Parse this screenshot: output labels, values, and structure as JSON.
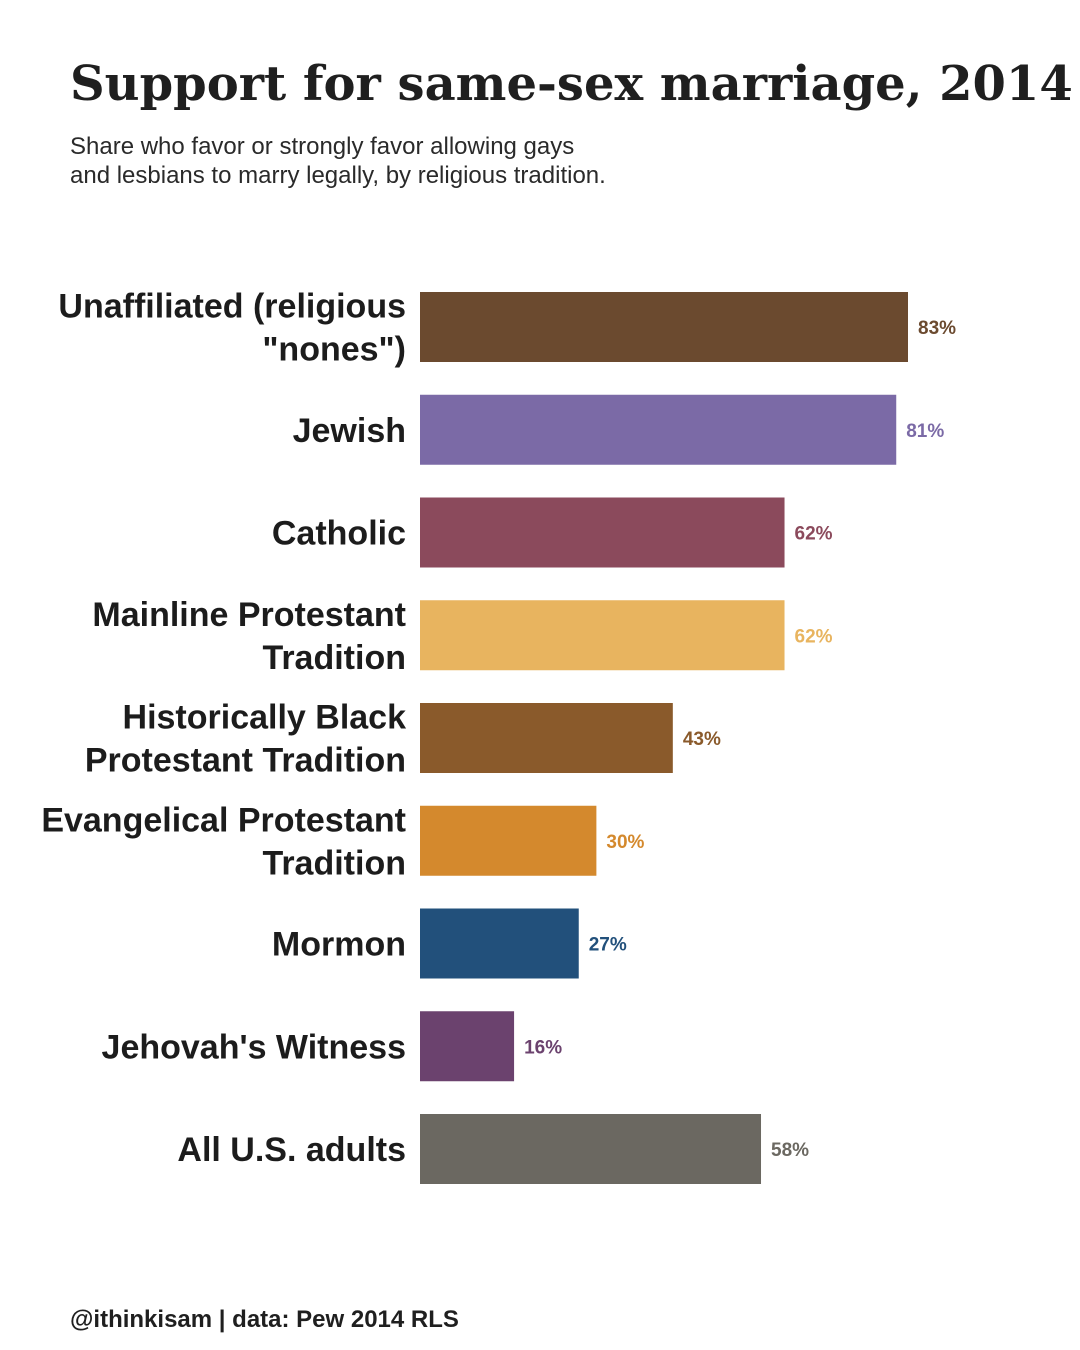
{
  "chart_data": {
    "type": "bar",
    "orientation": "horizontal",
    "title": "Support for same-sex marriage, 2014",
    "subtitle_lines": [
      "Share who favor or strongly favor allowing gays",
      "and lesbians to marry legally, by religious tradition."
    ],
    "caption": "@ithinkisam | data: Pew 2014 RLS",
    "value_suffix": "%",
    "categories": [
      [
        "Unaffiliated (religious",
        "\"nones\")"
      ],
      [
        "Jewish"
      ],
      [
        "Catholic"
      ],
      [
        "Mainline Protestant",
        "Tradition"
      ],
      [
        "Historically Black",
        "Protestant Tradition"
      ],
      [
        "Evangelical Protestant",
        "Tradition"
      ],
      [
        "Mormon"
      ],
      [
        "Jehovah's Witness"
      ],
      [
        "All U.S. adults"
      ]
    ],
    "values": [
      83,
      81,
      62,
      62,
      43,
      30,
      27,
      16,
      58
    ],
    "value_labels": [
      "83%",
      "81%",
      "62%",
      "62%",
      "43%",
      "30%",
      "27%",
      "16%",
      "58%"
    ],
    "colors": [
      "#6b4a2f",
      "#7b6aa6",
      "#8b4a5c",
      "#e8b45f",
      "#8a5a2b",
      "#d4892d",
      "#22507b",
      "#6b426e",
      "#6b6861"
    ],
    "xlim": [
      0,
      83
    ],
    "grid": false,
    "legend": "none"
  }
}
